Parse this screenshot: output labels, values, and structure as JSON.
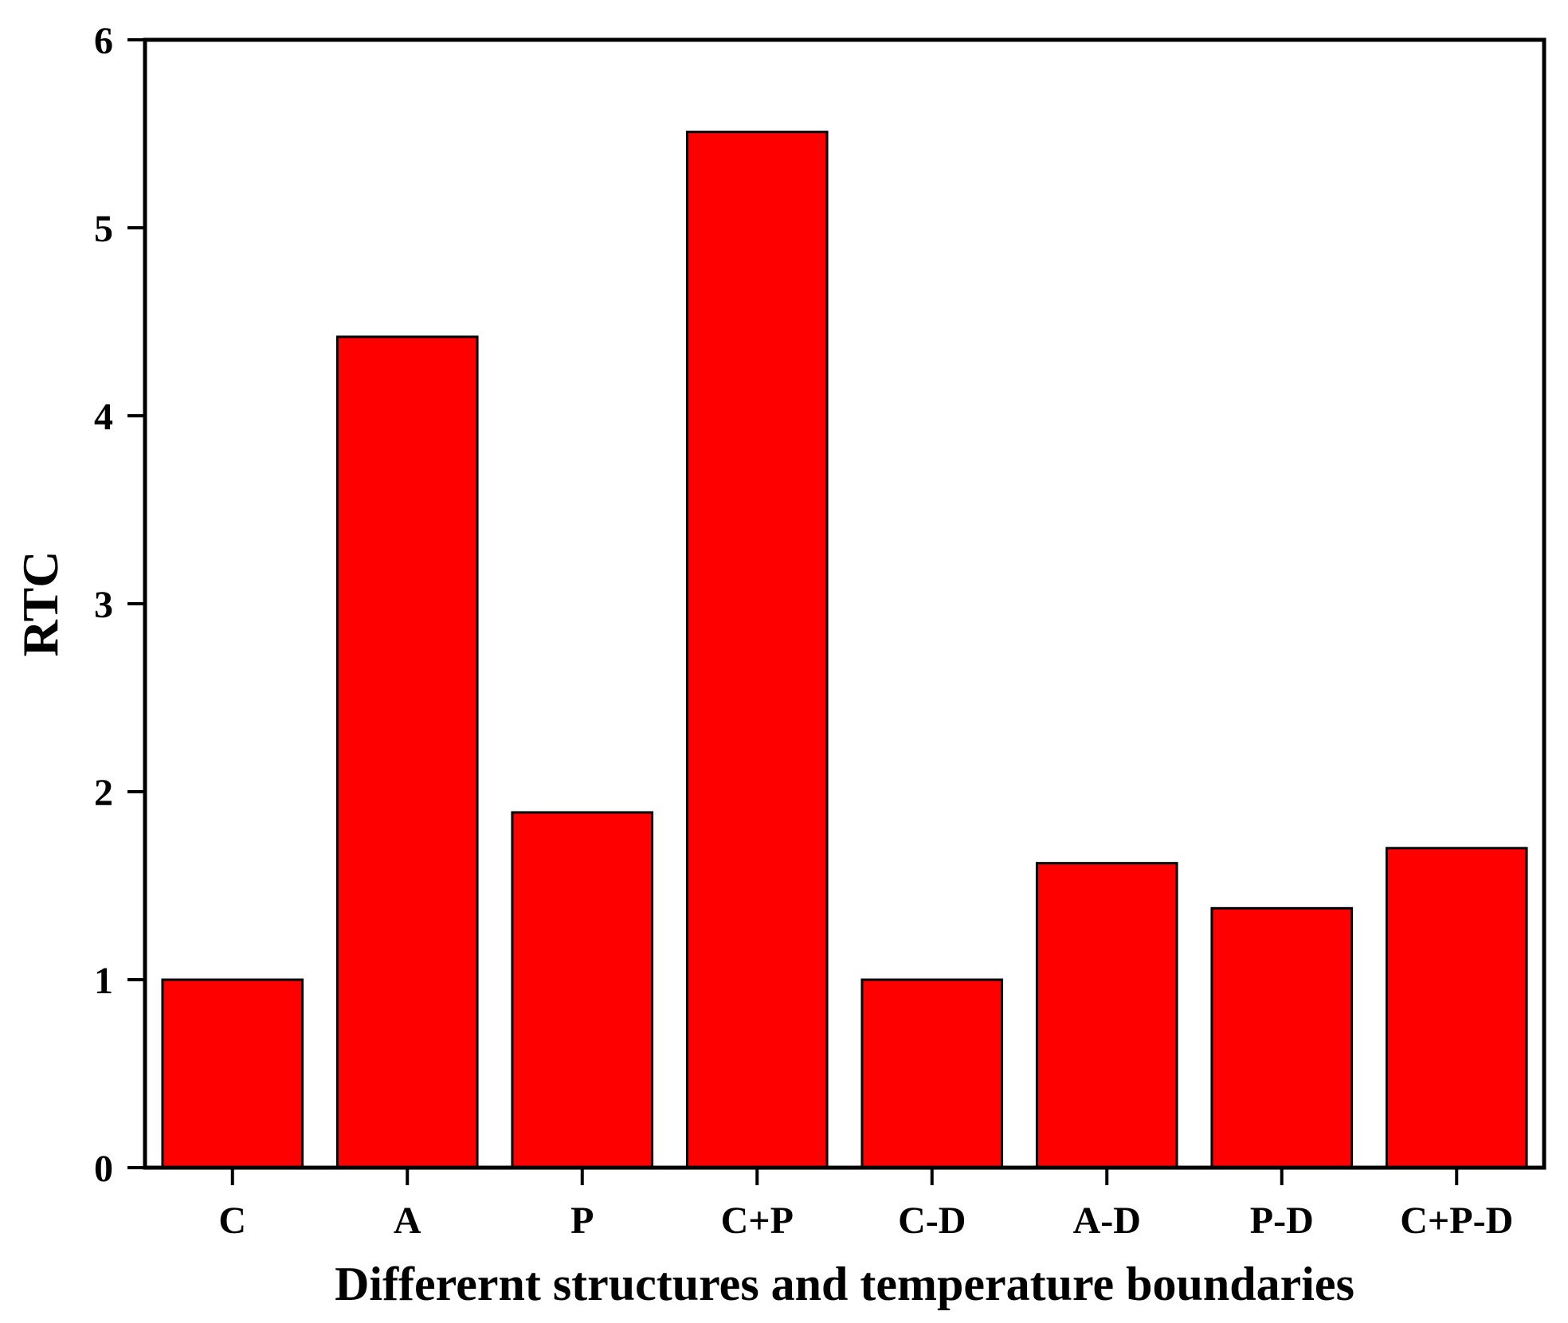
{
  "chart_data": {
    "type": "bar",
    "title": "",
    "xlabel": "Differernt structures and temperature boundaries",
    "ylabel": "RTC",
    "categories": [
      "C",
      "A",
      "P",
      "C+P",
      "C-D",
      "A-D",
      "P-D",
      "C+P-D"
    ],
    "values": [
      1.0,
      4.42,
      1.89,
      5.51,
      1.0,
      1.62,
      1.38,
      1.7
    ],
    "ylim": [
      0,
      6
    ],
    "yticks": [
      "0",
      "1",
      "2",
      "3",
      "4",
      "5",
      "6"
    ],
    "grid": false,
    "legend": "none",
    "bar_color": "#ff0000",
    "edge_color": "#000000"
  }
}
